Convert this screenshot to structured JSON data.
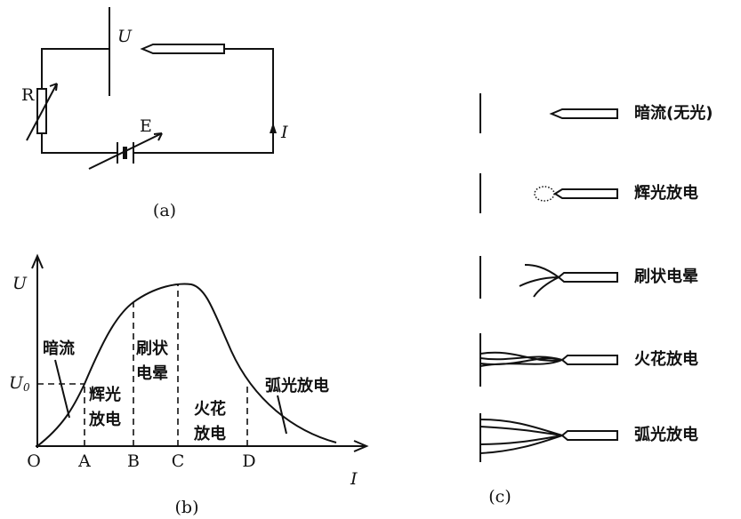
{
  "panel_a": {
    "labels": {
      "voltage": "U",
      "resistor": "R",
      "source": "E",
      "current": "I"
    },
    "caption": "(a)"
  },
  "panel_b": {
    "y_axis": "U",
    "threshold": {
      "symbol": "U",
      "subscript": "0"
    },
    "x_axis": "I",
    "points": [
      "O",
      "A",
      "B",
      "C",
      "D"
    ],
    "regions": [
      [
        "暗流"
      ],
      [
        "辉光",
        "放电"
      ],
      [
        "刷状",
        "电晕"
      ],
      [
        "火花",
        "放电"
      ],
      [
        "弧光放电"
      ]
    ],
    "caption": "(b)"
  },
  "panel_c": {
    "rows": [
      "暗流(无光)",
      "辉光放电",
      "刷状电晕",
      "火花放电",
      "弧光放电"
    ],
    "caption": "(c)"
  }
}
